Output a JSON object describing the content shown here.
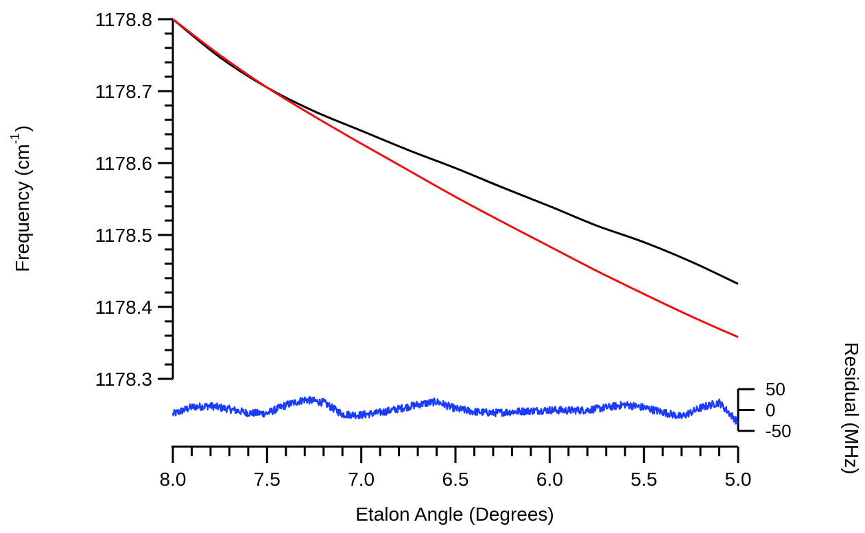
{
  "chart_data": [
    {
      "type": "line",
      "ylabel_main": "Frequency (cm",
      "ylabel_sup": "-1",
      "ylabel_close": ")",
      "xlabel": "Etalon Angle (Degrees)",
      "xlim": [
        8.0,
        5.0
      ],
      "ylim": [
        1178.3,
        1178.8
      ],
      "x_ticks": [
        "8.0",
        "7.5",
        "7.0",
        "6.5",
        "6.0",
        "5.5",
        "5.0"
      ],
      "y_ticks": [
        "1178.3",
        "1178.4",
        "1178.5",
        "1178.6",
        "1178.7",
        "1178.8"
      ],
      "series": [
        {
          "color": "#000000",
          "x": [
            8.0,
            7.75,
            7.5,
            7.25,
            7.0,
            6.75,
            6.5,
            6.25,
            6.0,
            5.75,
            5.5,
            5.25,
            5.0
          ],
          "y": [
            1178.8,
            1178.747,
            1178.705,
            1178.672,
            1178.645,
            1178.618,
            1178.593,
            1178.566,
            1178.54,
            1178.513,
            1178.49,
            1178.463,
            1178.432
          ]
        },
        {
          "color": "#ee1111",
          "x": [
            8.0,
            7.75,
            7.5,
            7.25,
            7.0,
            6.75,
            6.5,
            6.25,
            6.0,
            5.75,
            5.5,
            5.25,
            5.0
          ],
          "y": [
            1178.8,
            1178.75,
            1178.705,
            1178.665,
            1178.627,
            1178.59,
            1178.553,
            1178.518,
            1178.484,
            1178.45,
            1178.418,
            1178.387,
            1178.358
          ]
        }
      ]
    },
    {
      "type": "line",
      "ylabel": "Residual (MHz)",
      "xlim": [
        8.0,
        5.0
      ],
      "ylim": [
        -50,
        50
      ],
      "y_ticks": [
        "50",
        "0",
        "-50"
      ],
      "noise_amplitude": 9,
      "series": [
        {
          "color": "#1a3cff",
          "x": [
            8.0,
            7.9,
            7.8,
            7.7,
            7.6,
            7.5,
            7.4,
            7.3,
            7.2,
            7.1,
            7.0,
            6.9,
            6.8,
            6.7,
            6.6,
            6.5,
            6.4,
            6.3,
            6.2,
            6.1,
            6.0,
            5.9,
            5.8,
            5.7,
            5.6,
            5.5,
            5.4,
            5.3,
            5.2,
            5.1,
            5.0
          ],
          "y": [
            -10,
            7,
            10,
            2,
            -7,
            -8,
            12,
            25,
            18,
            -10,
            -12,
            -6,
            3,
            13,
            20,
            3,
            -4,
            -7,
            -4,
            -2,
            0,
            -1,
            0,
            6,
            13,
            6,
            -5,
            -16,
            5,
            18,
            -30
          ]
        }
      ]
    }
  ]
}
